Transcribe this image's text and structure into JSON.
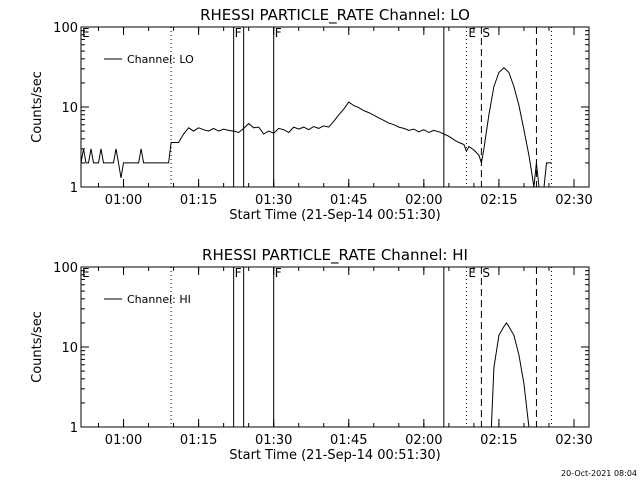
{
  "chart_data": [
    {
      "type": "line",
      "title": "RHESSI PARTICLE_RATE Channel: LO",
      "xlabel": "Start Time (21-Sep-14 00:51:30)",
      "ylabel": "Counts/sec",
      "yscale": "log",
      "xlim": [
        "00:51:30",
        "02:33:00"
      ],
      "ylim": [
        1,
        100
      ],
      "x_ticks": [
        "01:00",
        "01:15",
        "01:30",
        "01:45",
        "02:00",
        "02:15",
        "02:30"
      ],
      "y_ticks": [
        "1",
        "10",
        "100"
      ],
      "legend": {
        "label": "Channel: LO",
        "position": "top-left"
      },
      "markers": [
        {
          "label": "E",
          "time": "00:51:30",
          "style": "label-only"
        },
        {
          "label": "",
          "time": "01:09:30",
          "style": "dotted"
        },
        {
          "label": "F",
          "time": "01:22:00",
          "style": "solid"
        },
        {
          "label": "",
          "time": "01:24:00",
          "style": "solid"
        },
        {
          "label": "F",
          "time": "01:30:00",
          "style": "solid"
        },
        {
          "label": "",
          "time": "02:04:00",
          "style": "solid"
        },
        {
          "label": "E",
          "time": "02:08:30",
          "style": "dotted"
        },
        {
          "label": "S",
          "time": "02:11:30",
          "style": "dashed"
        },
        {
          "label": "",
          "time": "02:22:30",
          "style": "dashed"
        },
        {
          "label": "",
          "time": "02:25:30",
          "style": "dotted"
        }
      ],
      "series": [
        {
          "name": "Channel: LO",
          "points": [
            [
              "00:51:30",
              2
            ],
            [
              "00:52:00",
              3
            ],
            [
              "00:52:30",
              2
            ],
            [
              "00:53:00",
              2
            ],
            [
              "00:53:30",
              3
            ],
            [
              "00:54:00",
              2
            ],
            [
              "00:55:00",
              2
            ],
            [
              "00:55:30",
              3
            ],
            [
              "00:56:00",
              2
            ],
            [
              "00:57:00",
              2
            ],
            [
              "00:58:00",
              2
            ],
            [
              "00:58:30",
              3
            ],
            [
              "00:59:00",
              2
            ],
            [
              "00:59:30",
              1.3
            ],
            [
              "01:00:00",
              2
            ],
            [
              "01:02:00",
              2
            ],
            [
              "01:03:00",
              2
            ],
            [
              "01:03:30",
              3
            ],
            [
              "01:04:00",
              2
            ],
            [
              "01:06:00",
              2
            ],
            [
              "01:07:00",
              2
            ],
            [
              "01:08:00",
              2
            ],
            [
              "01:09:00",
              2
            ],
            [
              "01:09:30",
              3.6
            ],
            [
              "01:11:00",
              3.6
            ],
            [
              "01:12:00",
              4.6
            ],
            [
              "01:13:00",
              5.5
            ],
            [
              "01:14:00",
              5.0
            ],
            [
              "01:15:00",
              5.5
            ],
            [
              "01:16:00",
              5.2
            ],
            [
              "01:17:00",
              5.0
            ],
            [
              "01:18:00",
              5.4
            ],
            [
              "01:19:00",
              5.0
            ],
            [
              "01:20:00",
              5.3
            ],
            [
              "01:21:00",
              5.1
            ],
            [
              "01:22:00",
              5.0
            ],
            [
              "01:23:00",
              4.8
            ],
            [
              "01:24:00",
              5.4
            ],
            [
              "01:25:00",
              6.2
            ],
            [
              "01:26:00",
              5.5
            ],
            [
              "01:27:00",
              5.6
            ],
            [
              "01:28:00",
              4.6
            ],
            [
              "01:29:00",
              5.0
            ],
            [
              "01:30:00",
              4.7
            ],
            [
              "01:31:00",
              5.4
            ],
            [
              "01:32:00",
              5.2
            ],
            [
              "01:33:00",
              4.8
            ],
            [
              "01:34:00",
              5.6
            ],
            [
              "01:35:00",
              5.3
            ],
            [
              "01:36:00",
              5.6
            ],
            [
              "01:37:00",
              5.2
            ],
            [
              "01:38:00",
              5.7
            ],
            [
              "01:39:00",
              5.4
            ],
            [
              "01:40:00",
              5.8
            ],
            [
              "01:41:00",
              5.6
            ],
            [
              "01:42:00",
              6.6
            ],
            [
              "01:43:00",
              8.0
            ],
            [
              "01:44:00",
              9.4
            ],
            [
              "01:45:00",
              11.5
            ],
            [
              "01:46:00",
              10.4
            ],
            [
              "01:47:00",
              9.8
            ],
            [
              "01:48:00",
              9.0
            ],
            [
              "01:49:00",
              8.5
            ],
            [
              "01:50:00",
              7.9
            ],
            [
              "01:51:00",
              7.3
            ],
            [
              "01:52:00",
              6.8
            ],
            [
              "01:53:00",
              6.3
            ],
            [
              "01:54:00",
              6.0
            ],
            [
              "01:55:00",
              5.6
            ],
            [
              "01:56:00",
              5.4
            ],
            [
              "01:57:00",
              5.1
            ],
            [
              "01:58:00",
              5.3
            ],
            [
              "01:59:00",
              4.9
            ],
            [
              "02:00:00",
              5.2
            ],
            [
              "02:01:00",
              4.8
            ],
            [
              "02:02:00",
              5.1
            ],
            [
              "02:03:00",
              4.9
            ],
            [
              "02:04:00",
              4.6
            ],
            [
              "02:05:00",
              4.3
            ],
            [
              "02:06:00",
              3.9
            ],
            [
              "02:07:00",
              3.6
            ],
            [
              "02:08:00",
              3.4
            ],
            [
              "02:08:30",
              2.8
            ],
            [
              "02:09:00",
              3.2
            ],
            [
              "02:10:00",
              2.9
            ],
            [
              "02:11:00",
              2.5
            ],
            [
              "02:11:30",
              2.0
            ],
            [
              "02:12:00",
              3.0
            ],
            [
              "02:13:00",
              8.0
            ],
            [
              "02:14:00",
              18
            ],
            [
              "02:15:00",
              27
            ],
            [
              "02:16:00",
              31
            ],
            [
              "02:17:00",
              27
            ],
            [
              "02:18:00",
              18
            ],
            [
              "02:19:00",
              10.5
            ],
            [
              "02:20:00",
              5.2
            ],
            [
              "02:21:00",
              2.5
            ],
            [
              "02:21:30",
              1.6
            ],
            [
              "02:22:00",
              1.0
            ],
            [
              "02:22:30",
              2.0
            ],
            [
              "02:23:00",
              1.0
            ],
            [
              "02:24:00",
              1.0
            ],
            [
              "02:24:30",
              2.0
            ],
            [
              "02:25:30",
              2.0
            ]
          ]
        }
      ]
    },
    {
      "type": "line",
      "title": "RHESSI PARTICLE_RATE Channel: HI",
      "xlabel": "Start Time (21-Sep-14 00:51:30)",
      "ylabel": "Counts/sec",
      "yscale": "log",
      "xlim": [
        "00:51:30",
        "02:33:00"
      ],
      "ylim": [
        1,
        100
      ],
      "x_ticks": [
        "01:00",
        "01:15",
        "01:30",
        "01:45",
        "02:00",
        "02:15",
        "02:30"
      ],
      "y_ticks": [
        "1",
        "10",
        "100"
      ],
      "legend": {
        "label": "Channel: HI",
        "position": "top-left"
      },
      "markers": [
        {
          "label": "E",
          "time": "00:51:30",
          "style": "label-only"
        },
        {
          "label": "",
          "time": "01:09:30",
          "style": "dotted"
        },
        {
          "label": "F",
          "time": "01:22:00",
          "style": "solid"
        },
        {
          "label": "",
          "time": "01:24:00",
          "style": "solid"
        },
        {
          "label": "F",
          "time": "01:30:00",
          "style": "solid"
        },
        {
          "label": "",
          "time": "02:04:00",
          "style": "solid"
        },
        {
          "label": "E",
          "time": "02:08:30",
          "style": "dotted"
        },
        {
          "label": "S",
          "time": "02:11:30",
          "style": "dashed"
        },
        {
          "label": "",
          "time": "02:22:30",
          "style": "dashed"
        },
        {
          "label": "",
          "time": "02:25:30",
          "style": "dotted"
        }
      ],
      "series": [
        {
          "name": "Channel: HI",
          "points": [
            [
              "02:13:30",
              1.0
            ],
            [
              "02:14:00",
              5.5
            ],
            [
              "02:15:00",
              14
            ],
            [
              "02:16:00",
              18
            ],
            [
              "02:16:30",
              20
            ],
            [
              "02:17:00",
              18
            ],
            [
              "02:18:00",
              14
            ],
            [
              "02:19:00",
              8.0
            ],
            [
              "02:20:00",
              3.5
            ],
            [
              "02:21:00",
              1.0
            ]
          ]
        }
      ]
    }
  ],
  "footer": {
    "timestamp": "20-Oct-2021 08:04"
  }
}
